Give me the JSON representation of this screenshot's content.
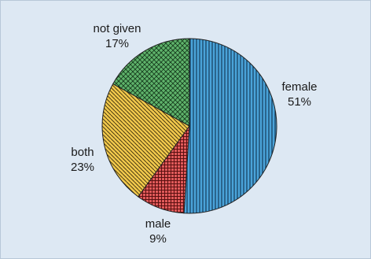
{
  "chart_data": {
    "type": "pie",
    "title": "",
    "slices": [
      {
        "label": "female",
        "value": 51,
        "display": "51%",
        "color": "#4aa3d9",
        "pattern": "vertical-lines"
      },
      {
        "label": "male",
        "value": 9,
        "display": "9%",
        "color": "#e05a5a",
        "pattern": "grid"
      },
      {
        "label": "both",
        "value": 23,
        "display": "23%",
        "color": "#f2c94c",
        "pattern": "diagonal-lines"
      },
      {
        "label": "not given",
        "value": 17,
        "display": "17%",
        "color": "#5fb36b",
        "pattern": "crosshatch"
      }
    ],
    "legend": "none",
    "start_angle": "12 o'clock",
    "direction": "clockwise"
  }
}
